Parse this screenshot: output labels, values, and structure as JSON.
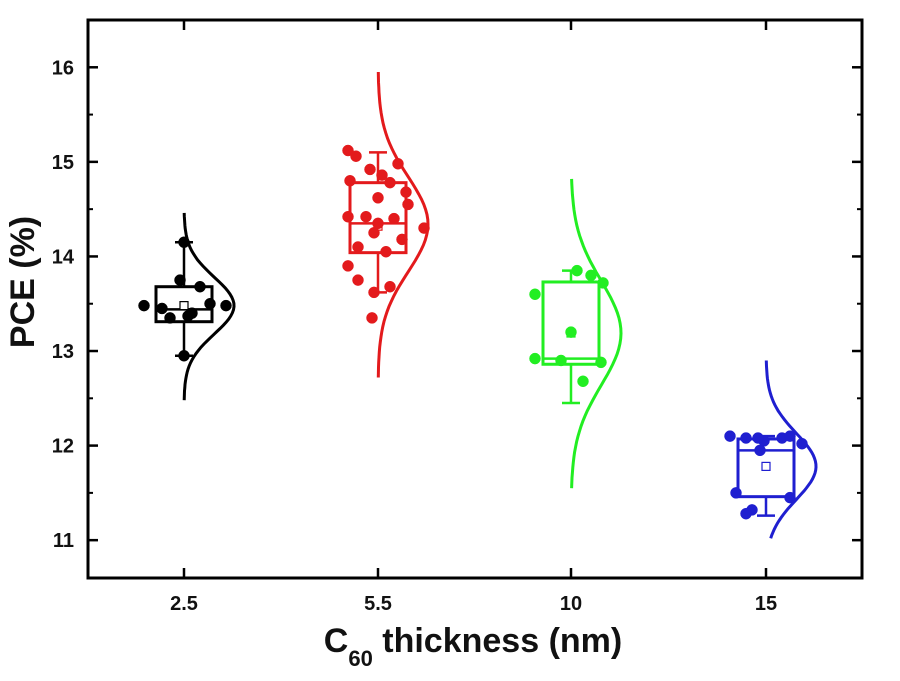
{
  "chart_data": {
    "type": "box",
    "title": "",
    "xlabel": {
      "prefix": "C",
      "subscript": "60",
      "suffix": " thickness (nm)"
    },
    "ylabel": "PCE (%)",
    "ylim": [
      10.6,
      16.5
    ],
    "yticks": [
      "11",
      "12",
      "13",
      "14",
      "15",
      "16"
    ],
    "categories": [
      "2.5",
      "5.5",
      "10",
      "15"
    ],
    "grid": false,
    "series": [
      {
        "category": "2.5",
        "color": "#000000",
        "box": {
          "q1": 13.31,
          "median": 13.44,
          "q3": 13.68,
          "mean": 13.48,
          "whisker_low": 12.95,
          "whisker_high": 14.15
        },
        "points": [
          13.48,
          13.35,
          13.4,
          13.75,
          13.68,
          13.45,
          13.37,
          13.5,
          13.48,
          12.95,
          14.15
        ],
        "distribution": {
          "mean": 13.48,
          "sd": 0.3,
          "range": [
            12.48,
            14.46
          ]
        }
      },
      {
        "category": "5.5",
        "color": "#e31a1c",
        "box": {
          "q1": 14.04,
          "median": 14.35,
          "q3": 14.78,
          "mean": 14.32,
          "whisker_low": 13.62,
          "whisker_high": 15.1
        },
        "points": [
          15.12,
          15.06,
          14.98,
          14.92,
          14.86,
          14.8,
          14.78,
          14.68,
          14.62,
          14.55,
          14.42,
          14.42,
          14.4,
          14.35,
          14.3,
          14.25,
          14.18,
          14.1,
          14.05,
          13.9,
          13.75,
          13.68,
          13.62,
          13.35
        ],
        "distribution": {
          "mean": 14.34,
          "sd": 0.5,
          "range": [
            12.72,
            15.95
          ]
        }
      },
      {
        "category": "10",
        "color": "#22ee22",
        "box": {
          "q1": 12.86,
          "median": 12.92,
          "q3": 13.73,
          "mean": 13.19,
          "whisker_low": 12.45,
          "whisker_high": 13.85
        },
        "points": [
          13.85,
          13.8,
          13.72,
          13.6,
          13.2,
          12.92,
          12.9,
          12.88,
          12.68
        ],
        "distribution": {
          "mean": 13.19,
          "sd": 0.55,
          "range": [
            11.55,
            14.82
          ]
        }
      },
      {
        "category": "15",
        "color": "#1f1fd0",
        "box": {
          "q1": 11.46,
          "median": 11.95,
          "q3": 12.07,
          "mean": 11.78,
          "whisker_low": 11.26,
          "whisker_high": 12.1
        },
        "points": [
          12.1,
          12.08,
          12.05,
          12.08,
          12.02,
          12.1,
          12.08,
          11.95,
          11.5,
          11.45,
          11.32,
          11.28
        ],
        "distribution": {
          "mean": 11.78,
          "sd": 0.35,
          "range": [
            11.02,
            12.9
          ]
        }
      }
    ]
  }
}
